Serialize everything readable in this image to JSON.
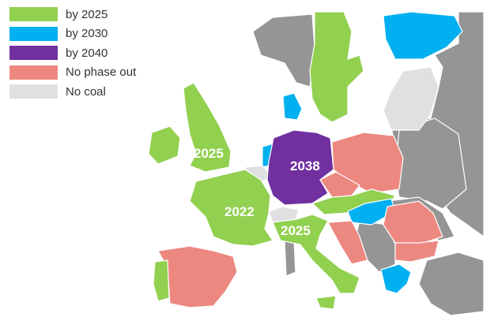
{
  "legend": [
    {
      "label": "by 2025",
      "color": "#92d050"
    },
    {
      "label": "by 2030",
      "color": "#00b0f0"
    },
    {
      "label": "by 2040",
      "color": "#7030a0"
    },
    {
      "label": "No phase out",
      "color": "#ec8880"
    },
    {
      "label": "No coal",
      "color": "#e0e0e2"
    }
  ],
  "other_color": "#959595",
  "map_labels": {
    "uk": "2025",
    "france": "2022",
    "germany": "2038",
    "italy": "2025"
  }
}
